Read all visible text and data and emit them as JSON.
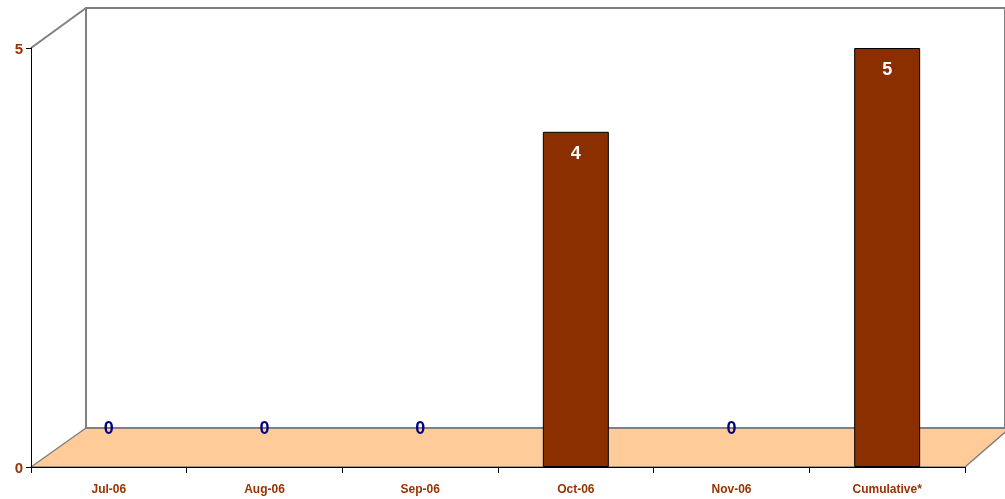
{
  "chart_data": {
    "type": "bar",
    "categories": [
      "Jul-06",
      "Aug-06",
      "Sep-06",
      "Oct-06",
      "Nov-06",
      "Cumulative*"
    ],
    "values": [
      0,
      0,
      0,
      4,
      0,
      5
    ],
    "color": "#8b2e00",
    "ylim": [
      0,
      5
    ],
    "yticks": [
      0,
      5
    ],
    "data_labels": true
  }
}
